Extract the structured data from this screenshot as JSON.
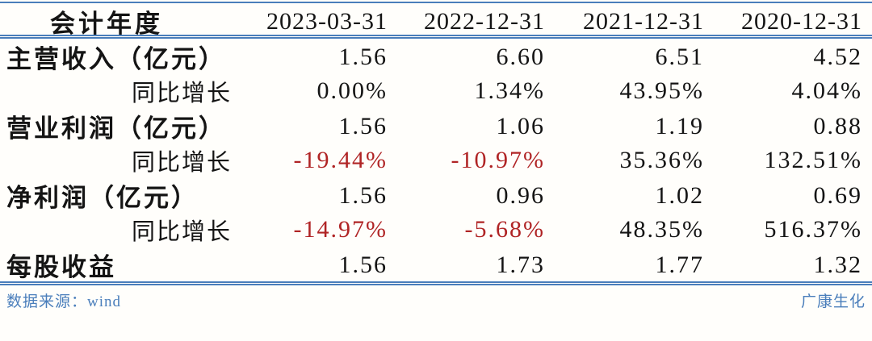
{
  "chart_data": {
    "type": "table",
    "header": {
      "label": "会计年度",
      "dates": [
        "2023-03-31",
        "2022-12-31",
        "2021-12-31",
        "2020-12-31"
      ]
    },
    "rows": [
      {
        "label": "主营收入（亿元）",
        "type": "main",
        "values": [
          "1.56",
          "6.60",
          "6.51",
          "4.52"
        ]
      },
      {
        "label": "同比增长",
        "type": "sub",
        "values": [
          "0.00%",
          "1.34%",
          "43.95%",
          "4.04%"
        ]
      },
      {
        "label": "营业利润（亿元）",
        "type": "main",
        "values": [
          "1.56",
          "1.06",
          "1.19",
          "0.88"
        ]
      },
      {
        "label": "同比增长",
        "type": "sub",
        "values": [
          "-19.44%",
          "-10.97%",
          "35.36%",
          "132.51%"
        ]
      },
      {
        "label": "净利润（亿元）",
        "type": "main",
        "values": [
          "1.56",
          "0.96",
          "1.02",
          "0.69"
        ]
      },
      {
        "label": "同比增长",
        "type": "sub",
        "values": [
          "-14.97%",
          "-5.68%",
          "48.35%",
          "516.37%"
        ]
      },
      {
        "label": "每股收益",
        "type": "main",
        "values": [
          "1.56",
          "1.73",
          "1.77",
          "1.32"
        ]
      }
    ]
  },
  "footer": {
    "source": "数据来源：wind",
    "watermark": "广康生化"
  },
  "colors": {
    "line_blue": "#4a7ebb",
    "negative_red": "#b02425",
    "footer_blue": "#4a7ebb",
    "text": "#141414",
    "background": "#fffefb"
  }
}
